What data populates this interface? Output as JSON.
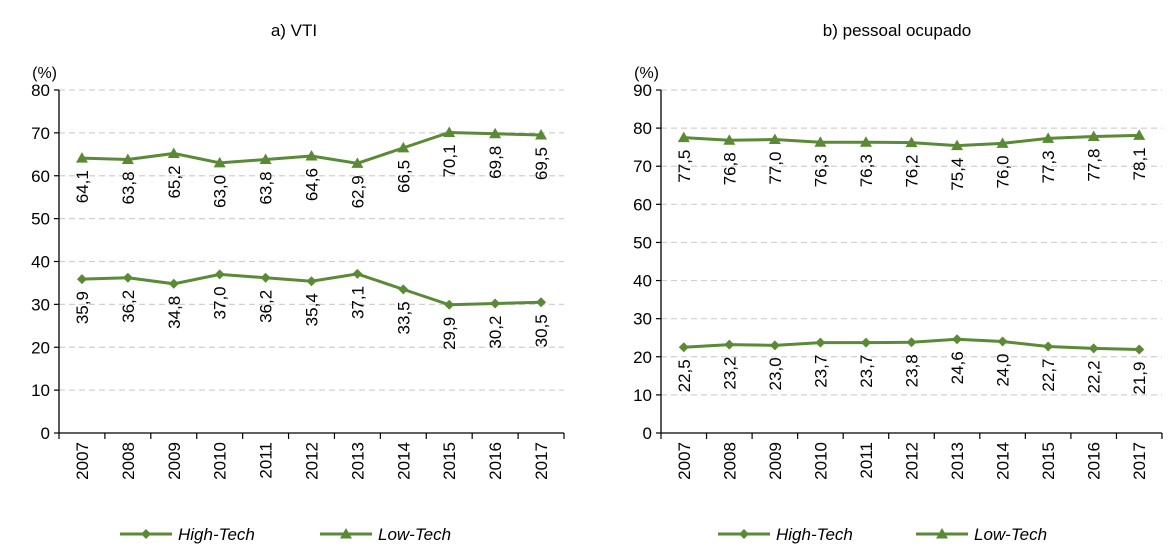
{
  "colors": {
    "line": "#5a8a35",
    "grid": "#d0d0d0",
    "axis": "#000000"
  },
  "chart_data": [
    {
      "type": "line",
      "title": "a) VTI",
      "ylabel": "(%)",
      "ylim": [
        0,
        80
      ],
      "yticks": [
        0,
        10,
        20,
        30,
        40,
        50,
        60,
        70,
        80
      ],
      "ytick_labels": [
        "0",
        "10",
        "20",
        "30",
        "40",
        "50",
        "60",
        "70",
        "80"
      ],
      "grid": "horizontal-dashed",
      "legend_position": "bottom",
      "categories": [
        "2007",
        "2008",
        "2009",
        "2010",
        "2011",
        "2012",
        "2013",
        "2014",
        "2015",
        "2016",
        "2017"
      ],
      "series": [
        {
          "name": "High-Tech",
          "marker": "diamond",
          "values": [
            35.9,
            36.2,
            34.8,
            37.0,
            36.2,
            35.4,
            37.1,
            33.5,
            29.9,
            30.2,
            30.5
          ],
          "labels": [
            "35,9",
            "36,2",
            "34,8",
            "37,0",
            "36,2",
            "35,4",
            "37,1",
            "33,5",
            "29,9",
            "30,2",
            "30,5"
          ]
        },
        {
          "name": "Low-Tech",
          "marker": "triangle",
          "values": [
            64.1,
            63.8,
            65.2,
            63.0,
            63.8,
            64.6,
            62.9,
            66.5,
            70.1,
            69.8,
            69.5
          ],
          "labels": [
            "64,1",
            "63,8",
            "65,2",
            "63,0",
            "63,8",
            "64,6",
            "62,9",
            "66,5",
            "70,1",
            "69,8",
            "69,5"
          ]
        }
      ]
    },
    {
      "type": "line",
      "title": "b) pessoal ocupado",
      "ylabel": "(%)",
      "ylim": [
        0,
        90
      ],
      "yticks": [
        0,
        10,
        20,
        30,
        40,
        50,
        60,
        70,
        80,
        90
      ],
      "ytick_labels": [
        "0",
        "10",
        "20",
        "30",
        "40",
        "50",
        "60",
        "70",
        "80",
        "90"
      ],
      "grid": "horizontal-dashed",
      "legend_position": "bottom",
      "categories": [
        "2007",
        "2008",
        "2009",
        "2010",
        "2011",
        "2012",
        "2013",
        "2014",
        "2015",
        "2016",
        "2017"
      ],
      "series": [
        {
          "name": "High-Tech",
          "marker": "diamond",
          "values": [
            22.5,
            23.2,
            23.0,
            23.7,
            23.7,
            23.8,
            24.6,
            24.0,
            22.7,
            22.2,
            21.9
          ],
          "labels": [
            "22,5",
            "23,2",
            "23,0",
            "23,7",
            "23,7",
            "23,8",
            "24,6",
            "24,0",
            "22,7",
            "22,2",
            "21,9"
          ]
        },
        {
          "name": "Low-Tech",
          "marker": "triangle",
          "values": [
            77.5,
            76.8,
            77.0,
            76.3,
            76.3,
            76.2,
            75.4,
            76.0,
            77.3,
            77.8,
            78.1
          ],
          "labels": [
            "77,5",
            "76,8",
            "77,0",
            "76,3",
            "76,3",
            "76,2",
            "75,4",
            "76,0",
            "77,3",
            "77,8",
            "78,1"
          ]
        }
      ]
    }
  ]
}
